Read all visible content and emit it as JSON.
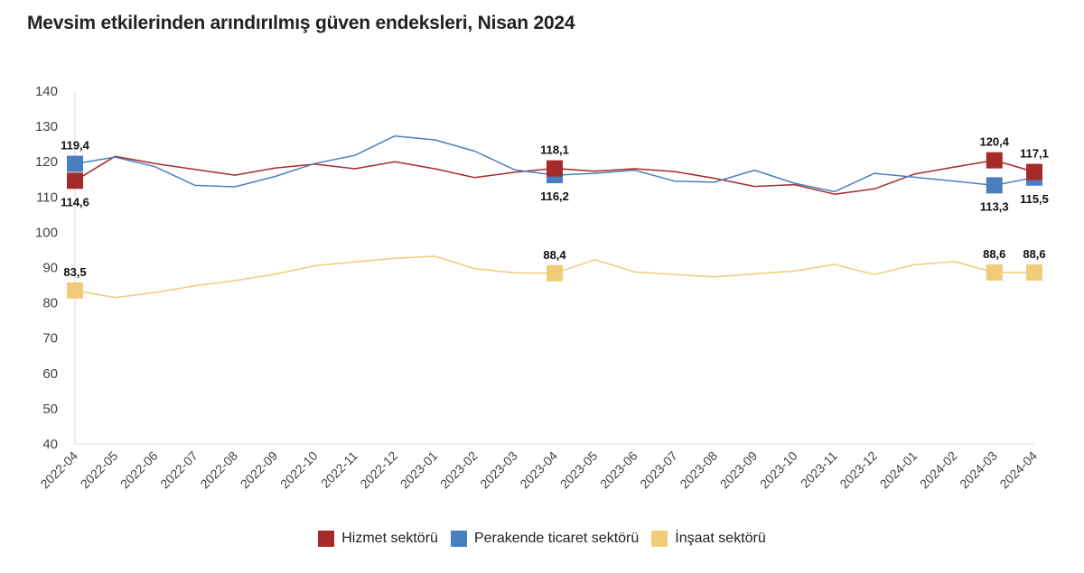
{
  "title": "Mevsim etkilerinden arındırılmış güven endeksleri, Nisan 2024",
  "chart_data": {
    "type": "line",
    "title": "Mevsim etkilerinden arındırılmış güven endeksleri, Nisan 2024",
    "xlabel": "",
    "ylabel": "",
    "ylim": [
      40,
      140
    ],
    "yticks": [
      "40",
      "50",
      "60",
      "70",
      "80",
      "90",
      "100",
      "110",
      "120",
      "130",
      "140"
    ],
    "grid": false,
    "legend_position": "bottom",
    "categories": [
      "2022-04",
      "2022-05",
      "2022-06",
      "2022-07",
      "2022-08",
      "2022-09",
      "2022-10",
      "2022-11",
      "2022-12",
      "2023-01",
      "2023-02",
      "2023-03",
      "2023-04",
      "2023-05",
      "2023-06",
      "2023-07",
      "2023-08",
      "2023-09",
      "2023-10",
      "2023-11",
      "2023-12",
      "2024-01",
      "2024-02",
      "2024-03",
      "2024-04"
    ],
    "series": [
      {
        "name": "Hizmet sektörü",
        "color": "#a52a2a",
        "values": [
          114.6,
          121.5,
          119.5,
          117.8,
          116.2,
          118.2,
          119.3,
          118.0,
          120.0,
          118.0,
          115.5,
          117.0,
          118.1,
          117.3,
          118.0,
          117.2,
          115.3,
          113.0,
          113.5,
          110.8,
          112.3,
          116.5,
          118.5,
          120.4,
          117.1
        ],
        "labels": [
          {
            "index": 0,
            "text": "114,6",
            "pos": "below"
          },
          {
            "index": 12,
            "text": "118,1",
            "pos": "above"
          },
          {
            "index": 23,
            "text": "120,4",
            "pos": "above"
          },
          {
            "index": 24,
            "text": "117,1",
            "pos": "above"
          }
        ]
      },
      {
        "name": "Perakende ticaret sektörü",
        "color": "#4a7fbf",
        "values": [
          119.4,
          121.3,
          118.6,
          113.3,
          112.9,
          115.8,
          119.5,
          121.8,
          127.3,
          126.2,
          123.0,
          117.7,
          116.2,
          116.7,
          117.6,
          114.5,
          114.2,
          117.6,
          113.9,
          111.5,
          116.7,
          115.6,
          114.5,
          113.3,
          115.5
        ],
        "labels": [
          {
            "index": 0,
            "text": "119,4",
            "pos": "above"
          },
          {
            "index": 12,
            "text": "116,2",
            "pos": "below"
          },
          {
            "index": 23,
            "text": "113,3",
            "pos": "below"
          },
          {
            "index": 24,
            "text": "115,5",
            "pos": "below"
          }
        ]
      },
      {
        "name": "İnşaat sektörü",
        "color": "#f0cc7a",
        "values": [
          83.5,
          81.5,
          82.9,
          84.8,
          86.3,
          88.1,
          90.5,
          91.6,
          92.6,
          93.2,
          89.7,
          88.5,
          88.4,
          92.2,
          88.8,
          88.0,
          87.4,
          88.2,
          89.0,
          90.9,
          88.0,
          90.8,
          91.7,
          88.6,
          88.6
        ],
        "labels": [
          {
            "index": 0,
            "text": "83,5",
            "pos": "above"
          },
          {
            "index": 12,
            "text": "88,4",
            "pos": "above"
          },
          {
            "index": 23,
            "text": "88,6",
            "pos": "above"
          },
          {
            "index": 24,
            "text": "88,6",
            "pos": "above"
          }
        ]
      }
    ]
  }
}
